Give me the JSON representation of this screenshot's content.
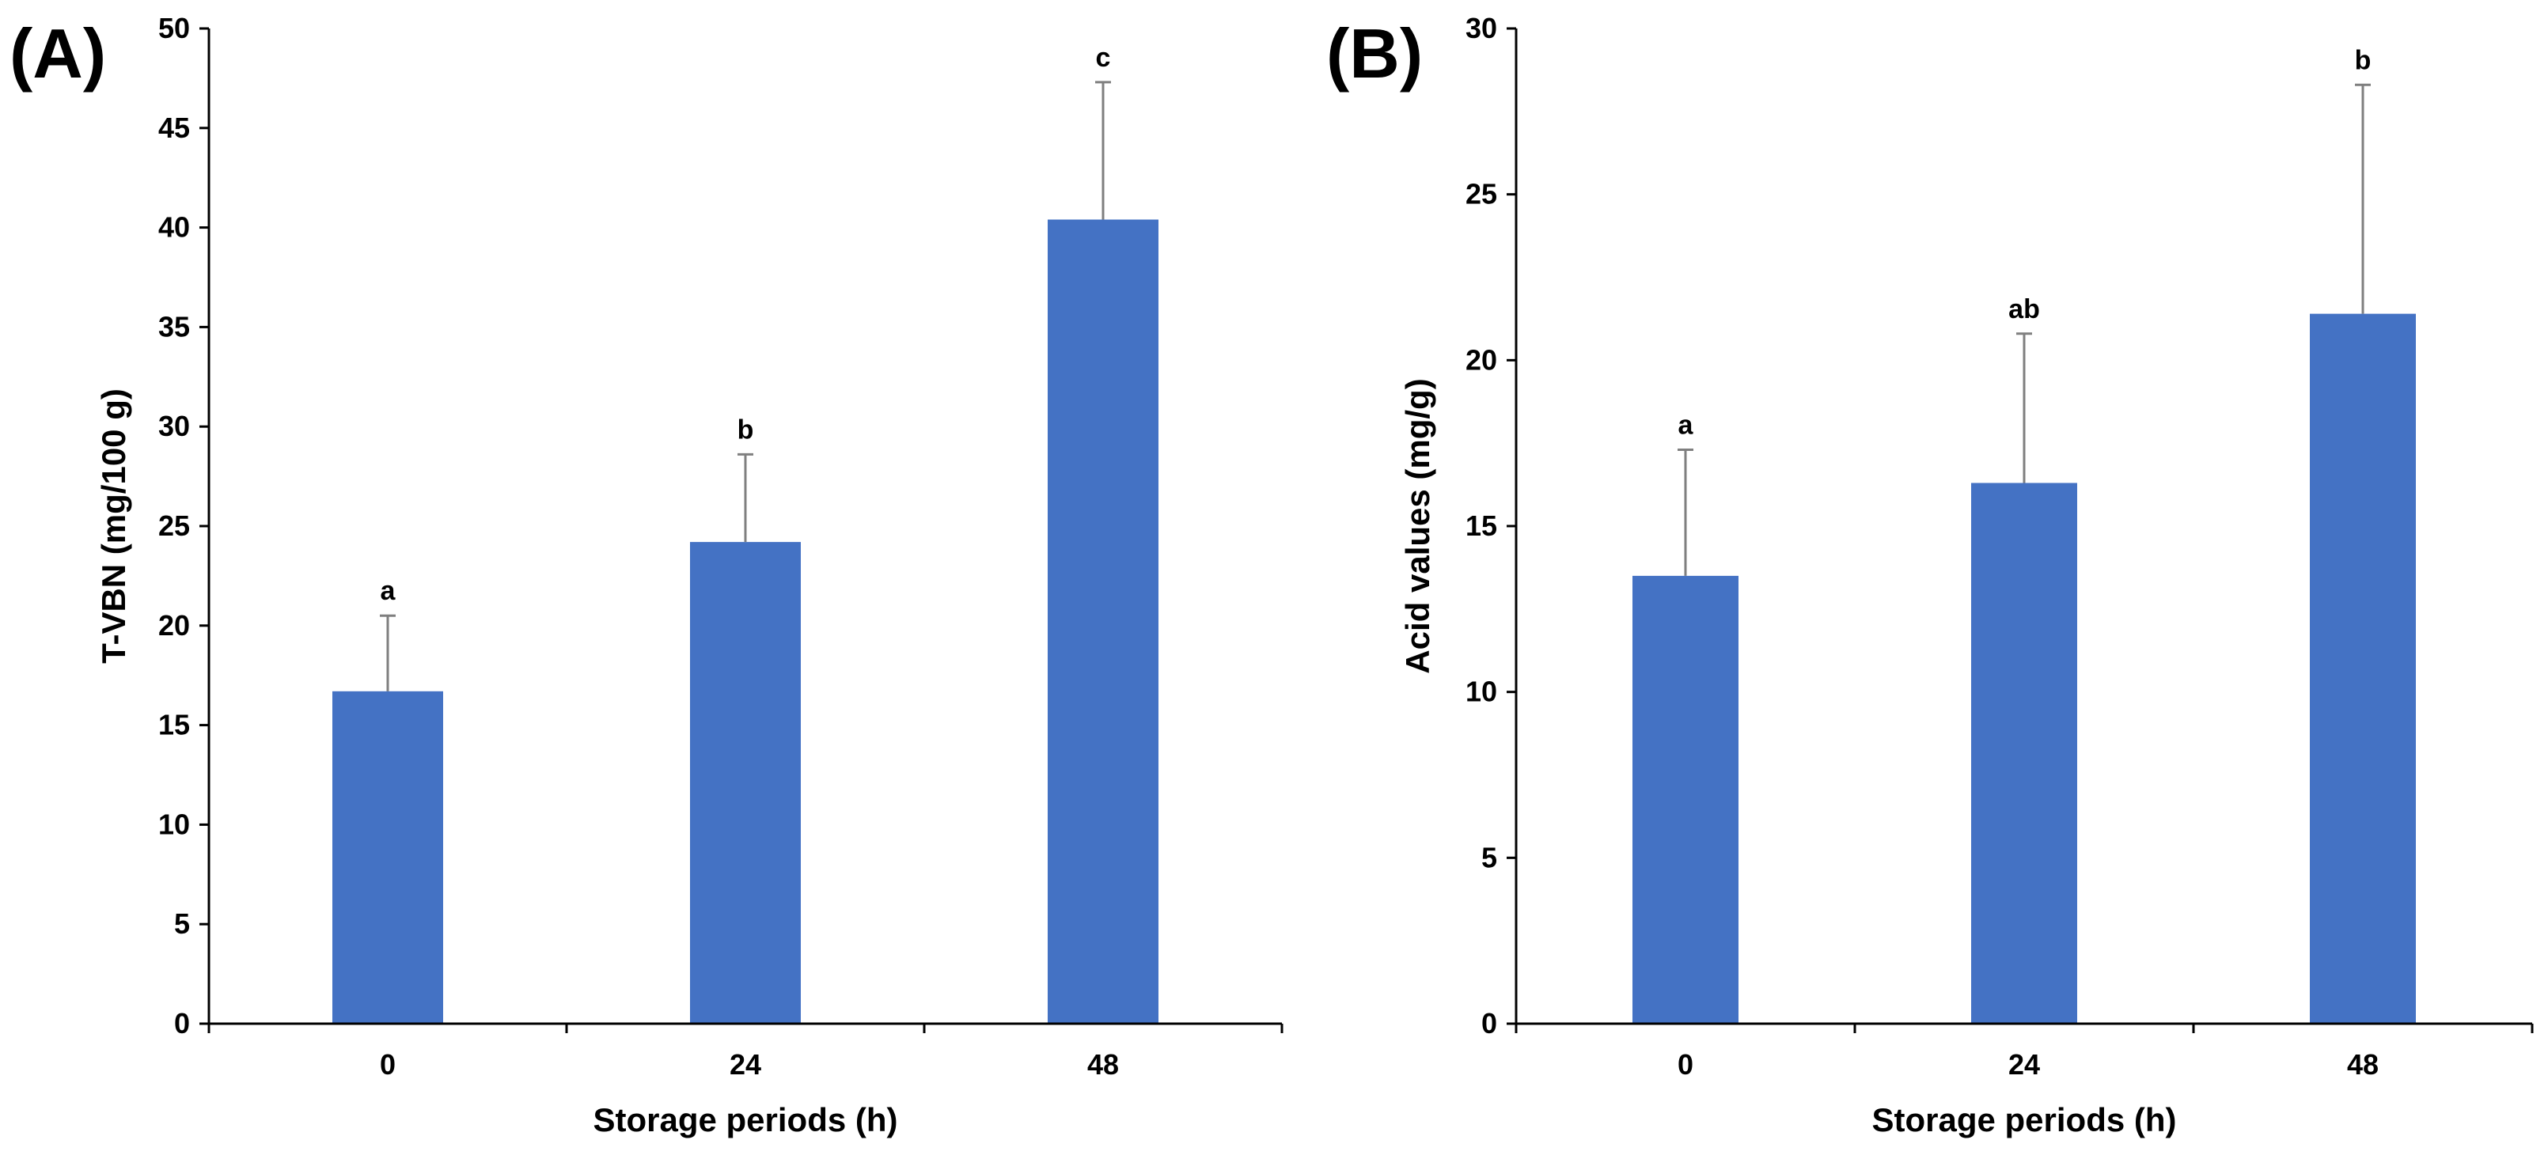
{
  "colors": {
    "bar": "#4472C4",
    "error": "#7F7F7F",
    "axis": "#000000"
  },
  "chart_data": [
    {
      "panel_label": "(A)",
      "type": "bar",
      "categories": [
        "0",
        "24",
        "48"
      ],
      "values": [
        16.7,
        24.2,
        40.4
      ],
      "errors": [
        3.8,
        4.4,
        6.9
      ],
      "significance": [
        "a",
        "b",
        "c"
      ],
      "xlabel": "Storage periods (h)",
      "ylabel": "T-VBN (mg/100 g)",
      "ylim": [
        0,
        50
      ],
      "yticks": [
        0,
        5,
        10,
        15,
        20,
        25,
        30,
        35,
        40,
        45,
        50
      ],
      "grid": false,
      "legend": "none"
    },
    {
      "panel_label": "(B)",
      "type": "bar",
      "categories": [
        "0",
        "24",
        "48"
      ],
      "values": [
        13.5,
        16.3,
        21.4
      ],
      "errors": [
        3.8,
        4.5,
        6.9
      ],
      "significance": [
        "a",
        "ab",
        "b"
      ],
      "xlabel": "Storage periods (h)",
      "ylabel": "Acid values (mg/g)",
      "ylim": [
        0,
        30
      ],
      "yticks": [
        0,
        5,
        10,
        15,
        20,
        25,
        30
      ],
      "grid": false,
      "legend": "none"
    }
  ]
}
